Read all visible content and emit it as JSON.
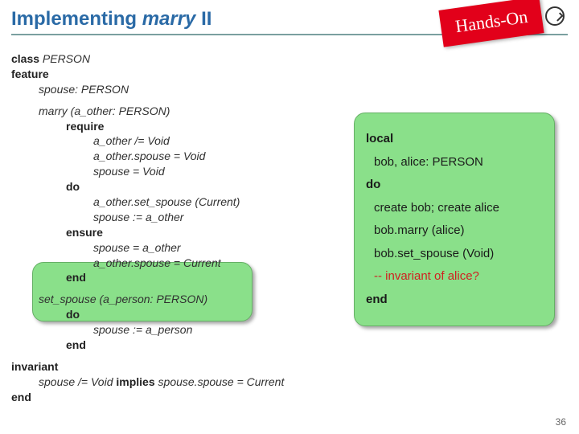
{
  "title": {
    "main": "Implementing",
    "em": "marry",
    "suffix": "II"
  },
  "hands_on": "Hands-On",
  "page_number": "36",
  "colors": {
    "title_color": "#2a6aa6",
    "hr_color": "#7aa0a0",
    "hands_on_bg": "#e2001a",
    "hands_on_text": "#ffffff",
    "green_box_bg": "#8ae08a",
    "green_box_border": "#66b066",
    "red_comment": "#d02020",
    "body_text": "#303030"
  },
  "code": {
    "l1_kw": "class",
    "l1_cls": " PERSON",
    "l2_kw": "feature",
    "l3": "spouse: PERSON",
    "l4": "marry (a_other: PERSON)",
    "l5_kw": "require",
    "l6": "a_other /= Void",
    "l7": "a_other.spouse = Void",
    "l8": "spouse = Void",
    "l9_kw": "do",
    "l10": "a_other.set_spouse (Current)",
    "l11": "spouse := a_other",
    "l12_kw": "ensure",
    "l13": "spouse = a_other",
    "l14": "a_other.spouse = Current",
    "l15_kw": "end",
    "l16": "set_spouse (a_person: PERSON)",
    "l17_kw": "do",
    "l18": "spouse := a_person",
    "l19_kw": "end",
    "l20_kw": "invariant",
    "l21a": "spouse /= Void ",
    "l21_kw": "implies",
    "l21b": " spouse.spouse = Current",
    "l22_kw": "end"
  },
  "right": {
    "l1_kw": "local",
    "l2": "bob, alice: PERSON",
    "l3_kw": "do",
    "l4": "create bob; create alice",
    "l5": "bob.marry (alice)",
    "l6": "bob.set_spouse (Void)",
    "l7": "-- invariant of alice?",
    "l8_kw": "end"
  }
}
